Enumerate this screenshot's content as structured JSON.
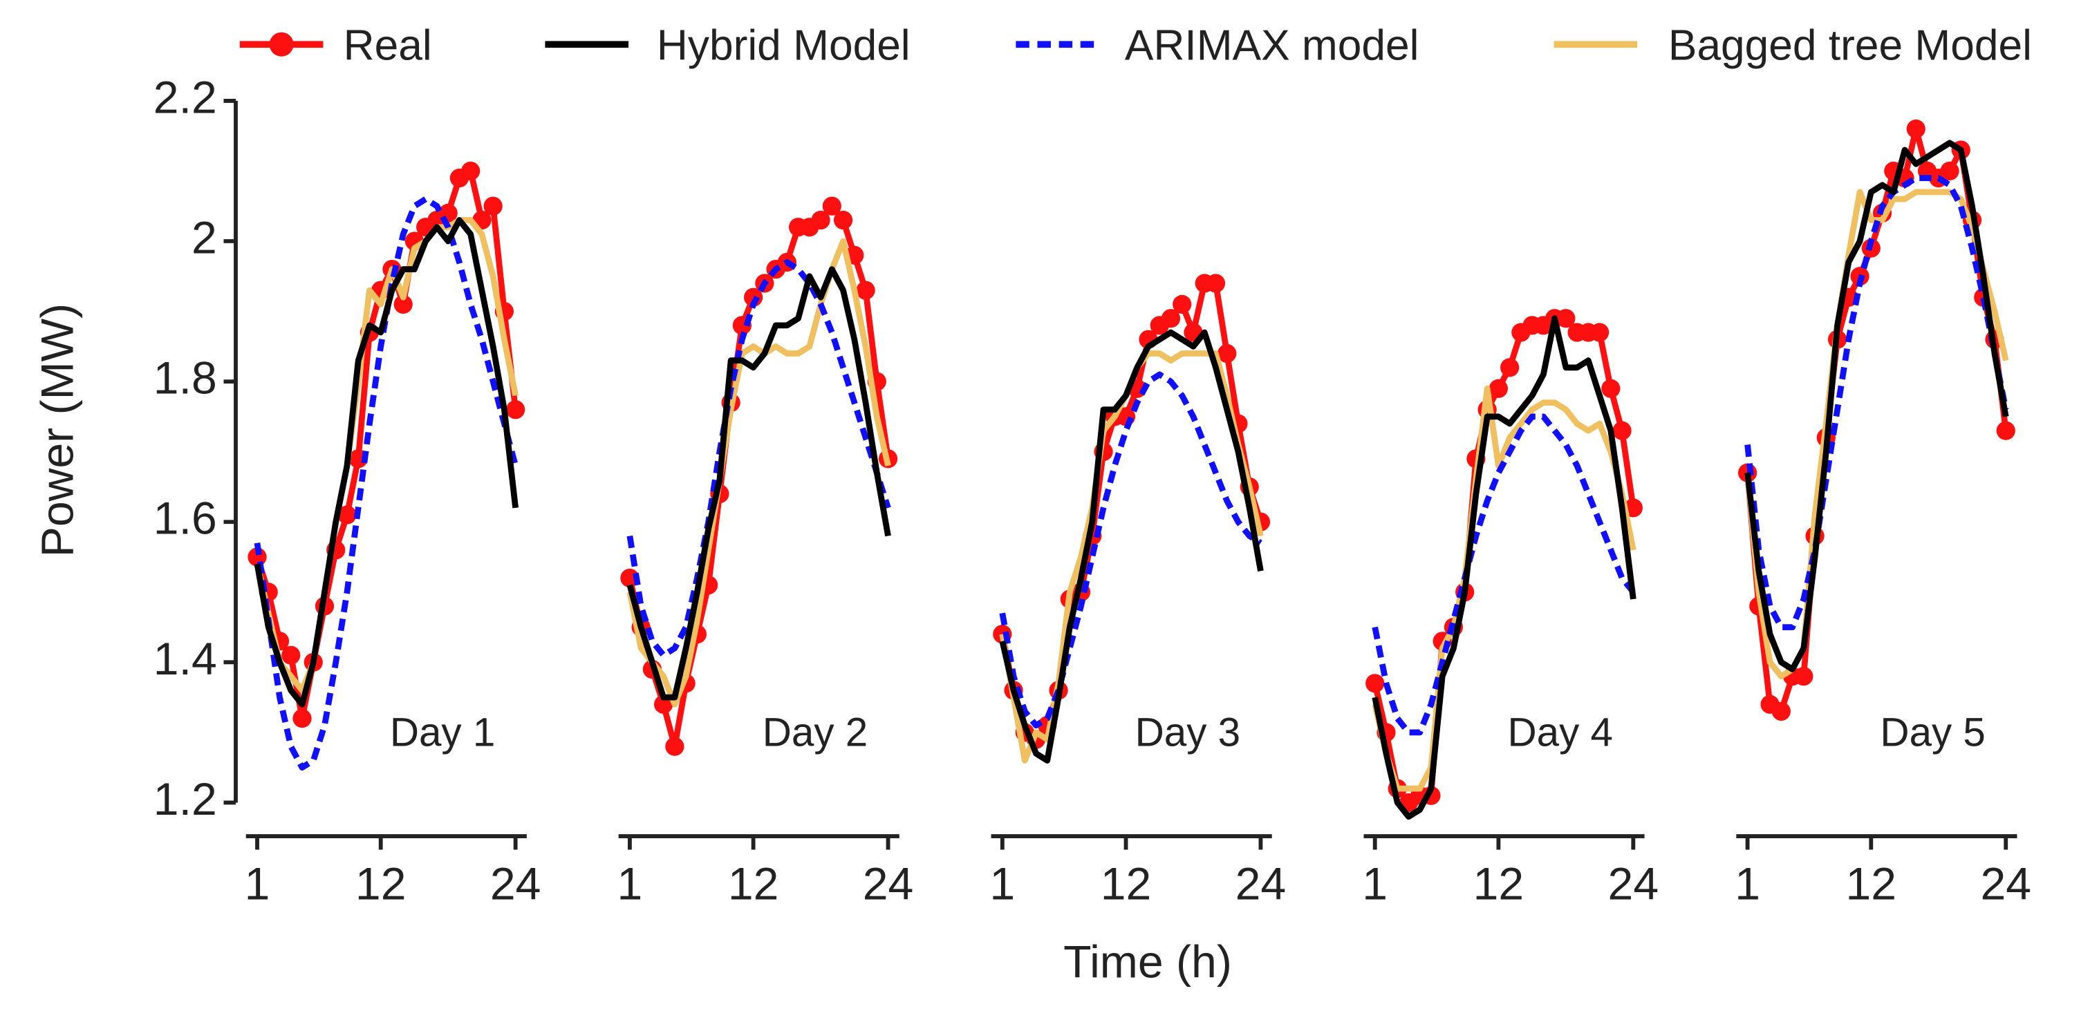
{
  "chart_data": {
    "type": "line",
    "xlabel": "Time (h)",
    "ylabel": "Power (MW)",
    "ylim": [
      1.2,
      2.2
    ],
    "yticks": [
      1.2,
      1.4,
      1.6,
      1.8,
      2,
      2.2
    ],
    "xlim": [
      0,
      25
    ],
    "xticks": [
      1,
      12,
      24
    ],
    "x": [
      1,
      2,
      3,
      4,
      5,
      6,
      7,
      8,
      9,
      10,
      11,
      12,
      13,
      14,
      15,
      16,
      17,
      18,
      19,
      20,
      21,
      22,
      23,
      24
    ],
    "series": [
      {
        "name": "Real",
        "color": "#ff1010",
        "marker": "o"
      },
      {
        "name": "Hybrid Model",
        "color": "#000000"
      },
      {
        "name": "ARIMAX model",
        "color": "#1010ff",
        "dashed": true
      },
      {
        "name": "Bagged tree Model",
        "color": "#f0c060"
      }
    ],
    "panels": [
      {
        "title": "Day 1",
        "series": [
          {
            "values": [
              1.55,
              1.5,
              1.43,
              1.41,
              1.32,
              1.4,
              1.48,
              1.56,
              1.61,
              1.69,
              1.87,
              1.93,
              1.96,
              1.91,
              2.0,
              2.02,
              2.03,
              2.04,
              2.09,
              2.1,
              2.03,
              2.05,
              1.9,
              1.76
            ]
          },
          {
            "values": [
              1.54,
              1.45,
              1.4,
              1.36,
              1.34,
              1.4,
              1.5,
              1.6,
              1.68,
              1.83,
              1.88,
              1.87,
              1.93,
              1.96,
              1.96,
              2.0,
              2.02,
              2.0,
              2.03,
              2.01,
              1.93,
              1.85,
              1.76,
              1.62
            ]
          },
          {
            "values": [
              1.57,
              1.46,
              1.35,
              1.28,
              1.25,
              1.26,
              1.31,
              1.4,
              1.5,
              1.62,
              1.74,
              1.85,
              1.94,
              2.01,
              2.05,
              2.06,
              2.05,
              2.02,
              1.97,
              1.91,
              1.86,
              1.8,
              1.74,
              1.68
            ]
          },
          {
            "values": [
              1.54,
              1.47,
              1.4,
              1.38,
              1.36,
              1.4,
              1.5,
              1.6,
              1.68,
              1.8,
              1.93,
              1.91,
              1.96,
              1.92,
              1.99,
              2.0,
              2.02,
              2.02,
              2.03,
              2.03,
              2.01,
              1.95,
              1.86,
              1.78
            ]
          }
        ]
      },
      {
        "title": "Day 2",
        "series": [
          {
            "values": [
              1.52,
              1.45,
              1.39,
              1.34,
              1.28,
              1.37,
              1.44,
              1.51,
              1.64,
              1.77,
              1.88,
              1.92,
              1.94,
              1.96,
              1.97,
              2.02,
              2.02,
              2.03,
              2.05,
              2.03,
              1.98,
              1.93,
              1.8,
              1.69
            ]
          },
          {
            "values": [
              1.51,
              1.45,
              1.4,
              1.35,
              1.35,
              1.42,
              1.5,
              1.59,
              1.66,
              1.83,
              1.83,
              1.82,
              1.84,
              1.88,
              1.88,
              1.89,
              1.95,
              1.92,
              1.96,
              1.93,
              1.86,
              1.77,
              1.67,
              1.58
            ]
          },
          {
            "values": [
              1.58,
              1.48,
              1.43,
              1.41,
              1.42,
              1.45,
              1.52,
              1.6,
              1.7,
              1.79,
              1.86,
              1.91,
              1.94,
              1.96,
              1.97,
              1.96,
              1.94,
              1.91,
              1.87,
              1.82,
              1.77,
              1.72,
              1.67,
              1.62
            ]
          },
          {
            "values": [
              1.5,
              1.42,
              1.4,
              1.38,
              1.34,
              1.38,
              1.46,
              1.56,
              1.66,
              1.76,
              1.84,
              1.85,
              1.84,
              1.85,
              1.84,
              1.84,
              1.85,
              1.91,
              1.96,
              2.0,
              1.93,
              1.85,
              1.75,
              1.68
            ]
          }
        ]
      },
      {
        "title": "Day 3",
        "series": [
          {
            "values": [
              1.44,
              1.36,
              1.3,
              1.29,
              1.31,
              1.36,
              1.49,
              1.5,
              1.58,
              1.7,
              1.75,
              1.75,
              1.79,
              1.86,
              1.88,
              1.89,
              1.91,
              1.87,
              1.94,
              1.94,
              1.84,
              1.74,
              1.65,
              1.6
            ]
          },
          {
            "values": [
              1.43,
              1.36,
              1.31,
              1.27,
              1.26,
              1.35,
              1.45,
              1.52,
              1.6,
              1.76,
              1.76,
              1.78,
              1.82,
              1.85,
              1.86,
              1.87,
              1.86,
              1.85,
              1.87,
              1.82,
              1.76,
              1.7,
              1.62,
              1.53
            ]
          },
          {
            "values": [
              1.47,
              1.38,
              1.33,
              1.31,
              1.32,
              1.36,
              1.42,
              1.48,
              1.55,
              1.62,
              1.68,
              1.73,
              1.77,
              1.8,
              1.81,
              1.8,
              1.78,
              1.75,
              1.71,
              1.67,
              1.63,
              1.6,
              1.58,
              1.57
            ]
          },
          {
            "values": [
              1.44,
              1.35,
              1.26,
              1.3,
              1.29,
              1.37,
              1.5,
              1.55,
              1.62,
              1.73,
              1.75,
              1.78,
              1.82,
              1.84,
              1.84,
              1.83,
              1.84,
              1.84,
              1.84,
              1.84,
              1.78,
              1.71,
              1.65,
              1.58
            ]
          }
        ]
      },
      {
        "title": "Day 4",
        "series": [
          {
            "values": [
              1.37,
              1.3,
              1.22,
              1.2,
              1.21,
              1.21,
              1.43,
              1.45,
              1.5,
              1.69,
              1.76,
              1.79,
              1.82,
              1.87,
              1.88,
              1.88,
              1.89,
              1.89,
              1.87,
              1.87,
              1.87,
              1.79,
              1.73,
              1.62
            ]
          },
          {
            "values": [
              1.35,
              1.27,
              1.2,
              1.18,
              1.19,
              1.22,
              1.38,
              1.42,
              1.5,
              1.64,
              1.75,
              1.75,
              1.74,
              1.76,
              1.78,
              1.81,
              1.89,
              1.82,
              1.82,
              1.83,
              1.78,
              1.73,
              1.62,
              1.49
            ]
          },
          {
            "values": [
              1.45,
              1.37,
              1.32,
              1.3,
              1.3,
              1.34,
              1.4,
              1.46,
              1.52,
              1.58,
              1.63,
              1.67,
              1.7,
              1.73,
              1.75,
              1.75,
              1.73,
              1.71,
              1.68,
              1.64,
              1.6,
              1.56,
              1.52,
              1.5
            ]
          },
          {
            "values": [
              1.34,
              1.27,
              1.22,
              1.22,
              1.22,
              1.25,
              1.42,
              1.45,
              1.52,
              1.66,
              1.79,
              1.68,
              1.72,
              1.74,
              1.76,
              1.77,
              1.77,
              1.76,
              1.74,
              1.73,
              1.74,
              1.7,
              1.64,
              1.56
            ]
          }
        ]
      },
      {
        "title": "Day 5",
        "series": [
          {
            "values": [
              1.67,
              1.48,
              1.34,
              1.33,
              1.38,
              1.38,
              1.58,
              1.72,
              1.86,
              1.92,
              1.95,
              1.99,
              2.04,
              2.1,
              2.09,
              2.16,
              2.1,
              2.09,
              2.1,
              2.13,
              2.03,
              1.92,
              1.86,
              1.73
            ]
          },
          {
            "values": [
              1.67,
              1.53,
              1.44,
              1.4,
              1.39,
              1.42,
              1.55,
              1.7,
              1.88,
              1.97,
              2.0,
              2.07,
              2.08,
              2.07,
              2.13,
              2.11,
              2.12,
              2.13,
              2.14,
              2.13,
              2.05,
              1.95,
              1.84,
              1.75
            ]
          },
          {
            "values": [
              1.71,
              1.56,
              1.48,
              1.45,
              1.45,
              1.49,
              1.56,
              1.66,
              1.76,
              1.86,
              1.94,
              2.0,
              2.05,
              2.07,
              2.08,
              2.09,
              2.09,
              2.09,
              2.08,
              2.05,
              1.99,
              1.92,
              1.84,
              1.76
            ]
          },
          {
            "values": [
              1.67,
              1.5,
              1.4,
              1.38,
              1.39,
              1.42,
              1.61,
              1.74,
              1.88,
              1.98,
              2.07,
              2.03,
              2.03,
              2.06,
              2.06,
              2.07,
              2.07,
              2.07,
              2.07,
              2.06,
              2.02,
              1.96,
              1.9,
              1.83
            ]
          }
        ]
      }
    ]
  }
}
